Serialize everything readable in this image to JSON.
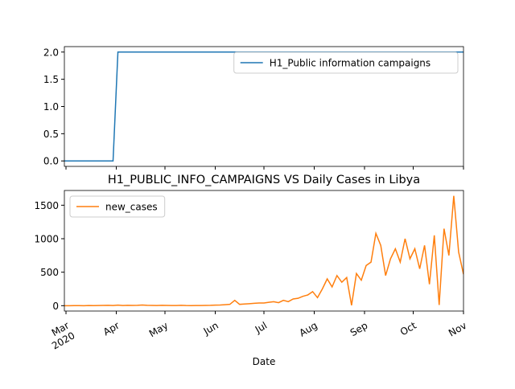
{
  "chart_data": [
    {
      "type": "line",
      "x": [
        "2020-02-29",
        "2020-03-03",
        "2020-03-06",
        "2020-03-09",
        "2020-03-12",
        "2020-03-15",
        "2020-03-18",
        "2020-03-21",
        "2020-03-24",
        "2020-03-27",
        "2020-03-30",
        "2020-04-02",
        "2020-04-05",
        "2020-04-08",
        "2020-04-11",
        "2020-04-14",
        "2020-04-17",
        "2020-04-20",
        "2020-04-23",
        "2020-04-26",
        "2020-04-29",
        "2020-05-02",
        "2020-05-05",
        "2020-05-08",
        "2020-05-11",
        "2020-05-14",
        "2020-05-17",
        "2020-05-20",
        "2020-05-23",
        "2020-05-26",
        "2020-05-29",
        "2020-06-01",
        "2020-06-04",
        "2020-06-07",
        "2020-06-10",
        "2020-06-13",
        "2020-06-16",
        "2020-06-19",
        "2020-06-22",
        "2020-06-25",
        "2020-06-28",
        "2020-07-01",
        "2020-07-04",
        "2020-07-07",
        "2020-07-10",
        "2020-07-13",
        "2020-07-16",
        "2020-07-19",
        "2020-07-22",
        "2020-07-25",
        "2020-07-28",
        "2020-07-31",
        "2020-08-03",
        "2020-08-06",
        "2020-08-09",
        "2020-08-12",
        "2020-08-15",
        "2020-08-18",
        "2020-08-21",
        "2020-08-24",
        "2020-08-27",
        "2020-08-30",
        "2020-09-02",
        "2020-09-05",
        "2020-09-08",
        "2020-09-11",
        "2020-09-14",
        "2020-09-17",
        "2020-09-20",
        "2020-09-23",
        "2020-09-26",
        "2020-09-29",
        "2020-10-02",
        "2020-10-05",
        "2020-10-08",
        "2020-10-11",
        "2020-10-14",
        "2020-10-17",
        "2020-10-20",
        "2020-10-23",
        "2020-10-26",
        "2020-10-29",
        "2020-11-01"
      ],
      "series": [
        {
          "name": "H1_Public information campaigns",
          "color": "#1f77b4",
          "values": [
            0,
            0,
            0,
            0,
            0,
            0,
            0,
            0,
            0,
            0,
            0,
            2,
            2,
            2,
            2,
            2,
            2,
            2,
            2,
            2,
            2,
            2,
            2,
            2,
            2,
            2,
            2,
            2,
            2,
            2,
            2,
            2,
            2,
            2,
            2,
            2,
            2,
            2,
            2,
            2,
            2,
            2,
            2,
            2,
            2,
            2,
            2,
            2,
            2,
            2,
            2,
            2,
            2,
            2,
            2,
            2,
            2,
            2,
            2,
            2,
            2,
            2,
            2,
            2,
            2,
            2,
            2,
            2,
            2,
            2,
            2,
            2,
            2,
            2,
            2,
            2,
            2,
            2,
            2,
            2,
            2,
            2,
            2
          ]
        }
      ],
      "xlim": [
        "2020-02-29",
        "2020-11-01"
      ],
      "ylim": [
        -0.1,
        2.1
      ],
      "yticks": [
        0.0,
        0.5,
        1.0,
        1.5,
        2.0
      ],
      "legend": "upper right"
    },
    {
      "type": "line",
      "title": "H1_PUBLIC_INFO_CAMPAIGNS VS Daily Cases in Libya",
      "xlabel": "Date",
      "x": [
        "2020-02-29",
        "2020-03-03",
        "2020-03-06",
        "2020-03-09",
        "2020-03-12",
        "2020-03-15",
        "2020-03-18",
        "2020-03-21",
        "2020-03-24",
        "2020-03-27",
        "2020-03-30",
        "2020-04-02",
        "2020-04-05",
        "2020-04-08",
        "2020-04-11",
        "2020-04-14",
        "2020-04-17",
        "2020-04-20",
        "2020-04-23",
        "2020-04-26",
        "2020-04-29",
        "2020-05-02",
        "2020-05-05",
        "2020-05-08",
        "2020-05-11",
        "2020-05-14",
        "2020-05-17",
        "2020-05-20",
        "2020-05-23",
        "2020-05-26",
        "2020-05-29",
        "2020-06-01",
        "2020-06-04",
        "2020-06-07",
        "2020-06-10",
        "2020-06-13",
        "2020-06-16",
        "2020-06-19",
        "2020-06-22",
        "2020-06-25",
        "2020-06-28",
        "2020-07-01",
        "2020-07-04",
        "2020-07-07",
        "2020-07-10",
        "2020-07-13",
        "2020-07-16",
        "2020-07-19",
        "2020-07-22",
        "2020-07-25",
        "2020-07-28",
        "2020-07-31",
        "2020-08-03",
        "2020-08-06",
        "2020-08-09",
        "2020-08-12",
        "2020-08-15",
        "2020-08-18",
        "2020-08-21",
        "2020-08-24",
        "2020-08-27",
        "2020-08-30",
        "2020-09-02",
        "2020-09-05",
        "2020-09-08",
        "2020-09-11",
        "2020-09-14",
        "2020-09-17",
        "2020-09-20",
        "2020-09-23",
        "2020-09-26",
        "2020-09-29",
        "2020-10-02",
        "2020-10-05",
        "2020-10-08",
        "2020-10-11",
        "2020-10-14",
        "2020-10-17",
        "2020-10-20",
        "2020-10-23",
        "2020-10-26",
        "2020-10-29",
        "2020-11-01"
      ],
      "series": [
        {
          "name": "new_cases",
          "color": "#ff7f0e",
          "values": [
            0,
            0,
            1,
            1,
            0,
            2,
            1,
            3,
            4,
            5,
            2,
            8,
            3,
            5,
            4,
            6,
            10,
            5,
            4,
            3,
            6,
            4,
            2,
            3,
            5,
            2,
            1,
            3,
            2,
            4,
            5,
            8,
            10,
            15,
            20,
            80,
            20,
            25,
            30,
            35,
            40,
            40,
            50,
            60,
            45,
            80,
            60,
            100,
            110,
            140,
            160,
            210,
            120,
            250,
            400,
            280,
            450,
            350,
            420,
            5,
            480,
            380,
            600,
            650,
            1080,
            900,
            450,
            700,
            850,
            650,
            1000,
            700,
            850,
            550,
            900,
            320,
            1050,
            10,
            1150,
            750,
            1640,
            800,
            470
          ]
        }
      ],
      "xlim": [
        "2020-02-29",
        "2020-11-01"
      ],
      "xticks": [
        {
          "value": "2020-03-01",
          "label": "Mar\n2020"
        },
        {
          "value": "2020-04-01",
          "label": "Apr"
        },
        {
          "value": "2020-05-01",
          "label": "May"
        },
        {
          "value": "2020-06-01",
          "label": "Jun"
        },
        {
          "value": "2020-07-01",
          "label": "Jul"
        },
        {
          "value": "2020-08-01",
          "label": "Aug"
        },
        {
          "value": "2020-09-01",
          "label": "Sep"
        },
        {
          "value": "2020-10-01",
          "label": "Oct"
        },
        {
          "value": "2020-11-01",
          "label": "Nov"
        }
      ],
      "ylim": [
        -80,
        1720
      ],
      "yticks": [
        0,
        500,
        1000,
        1500
      ],
      "legend": "upper left"
    }
  ]
}
